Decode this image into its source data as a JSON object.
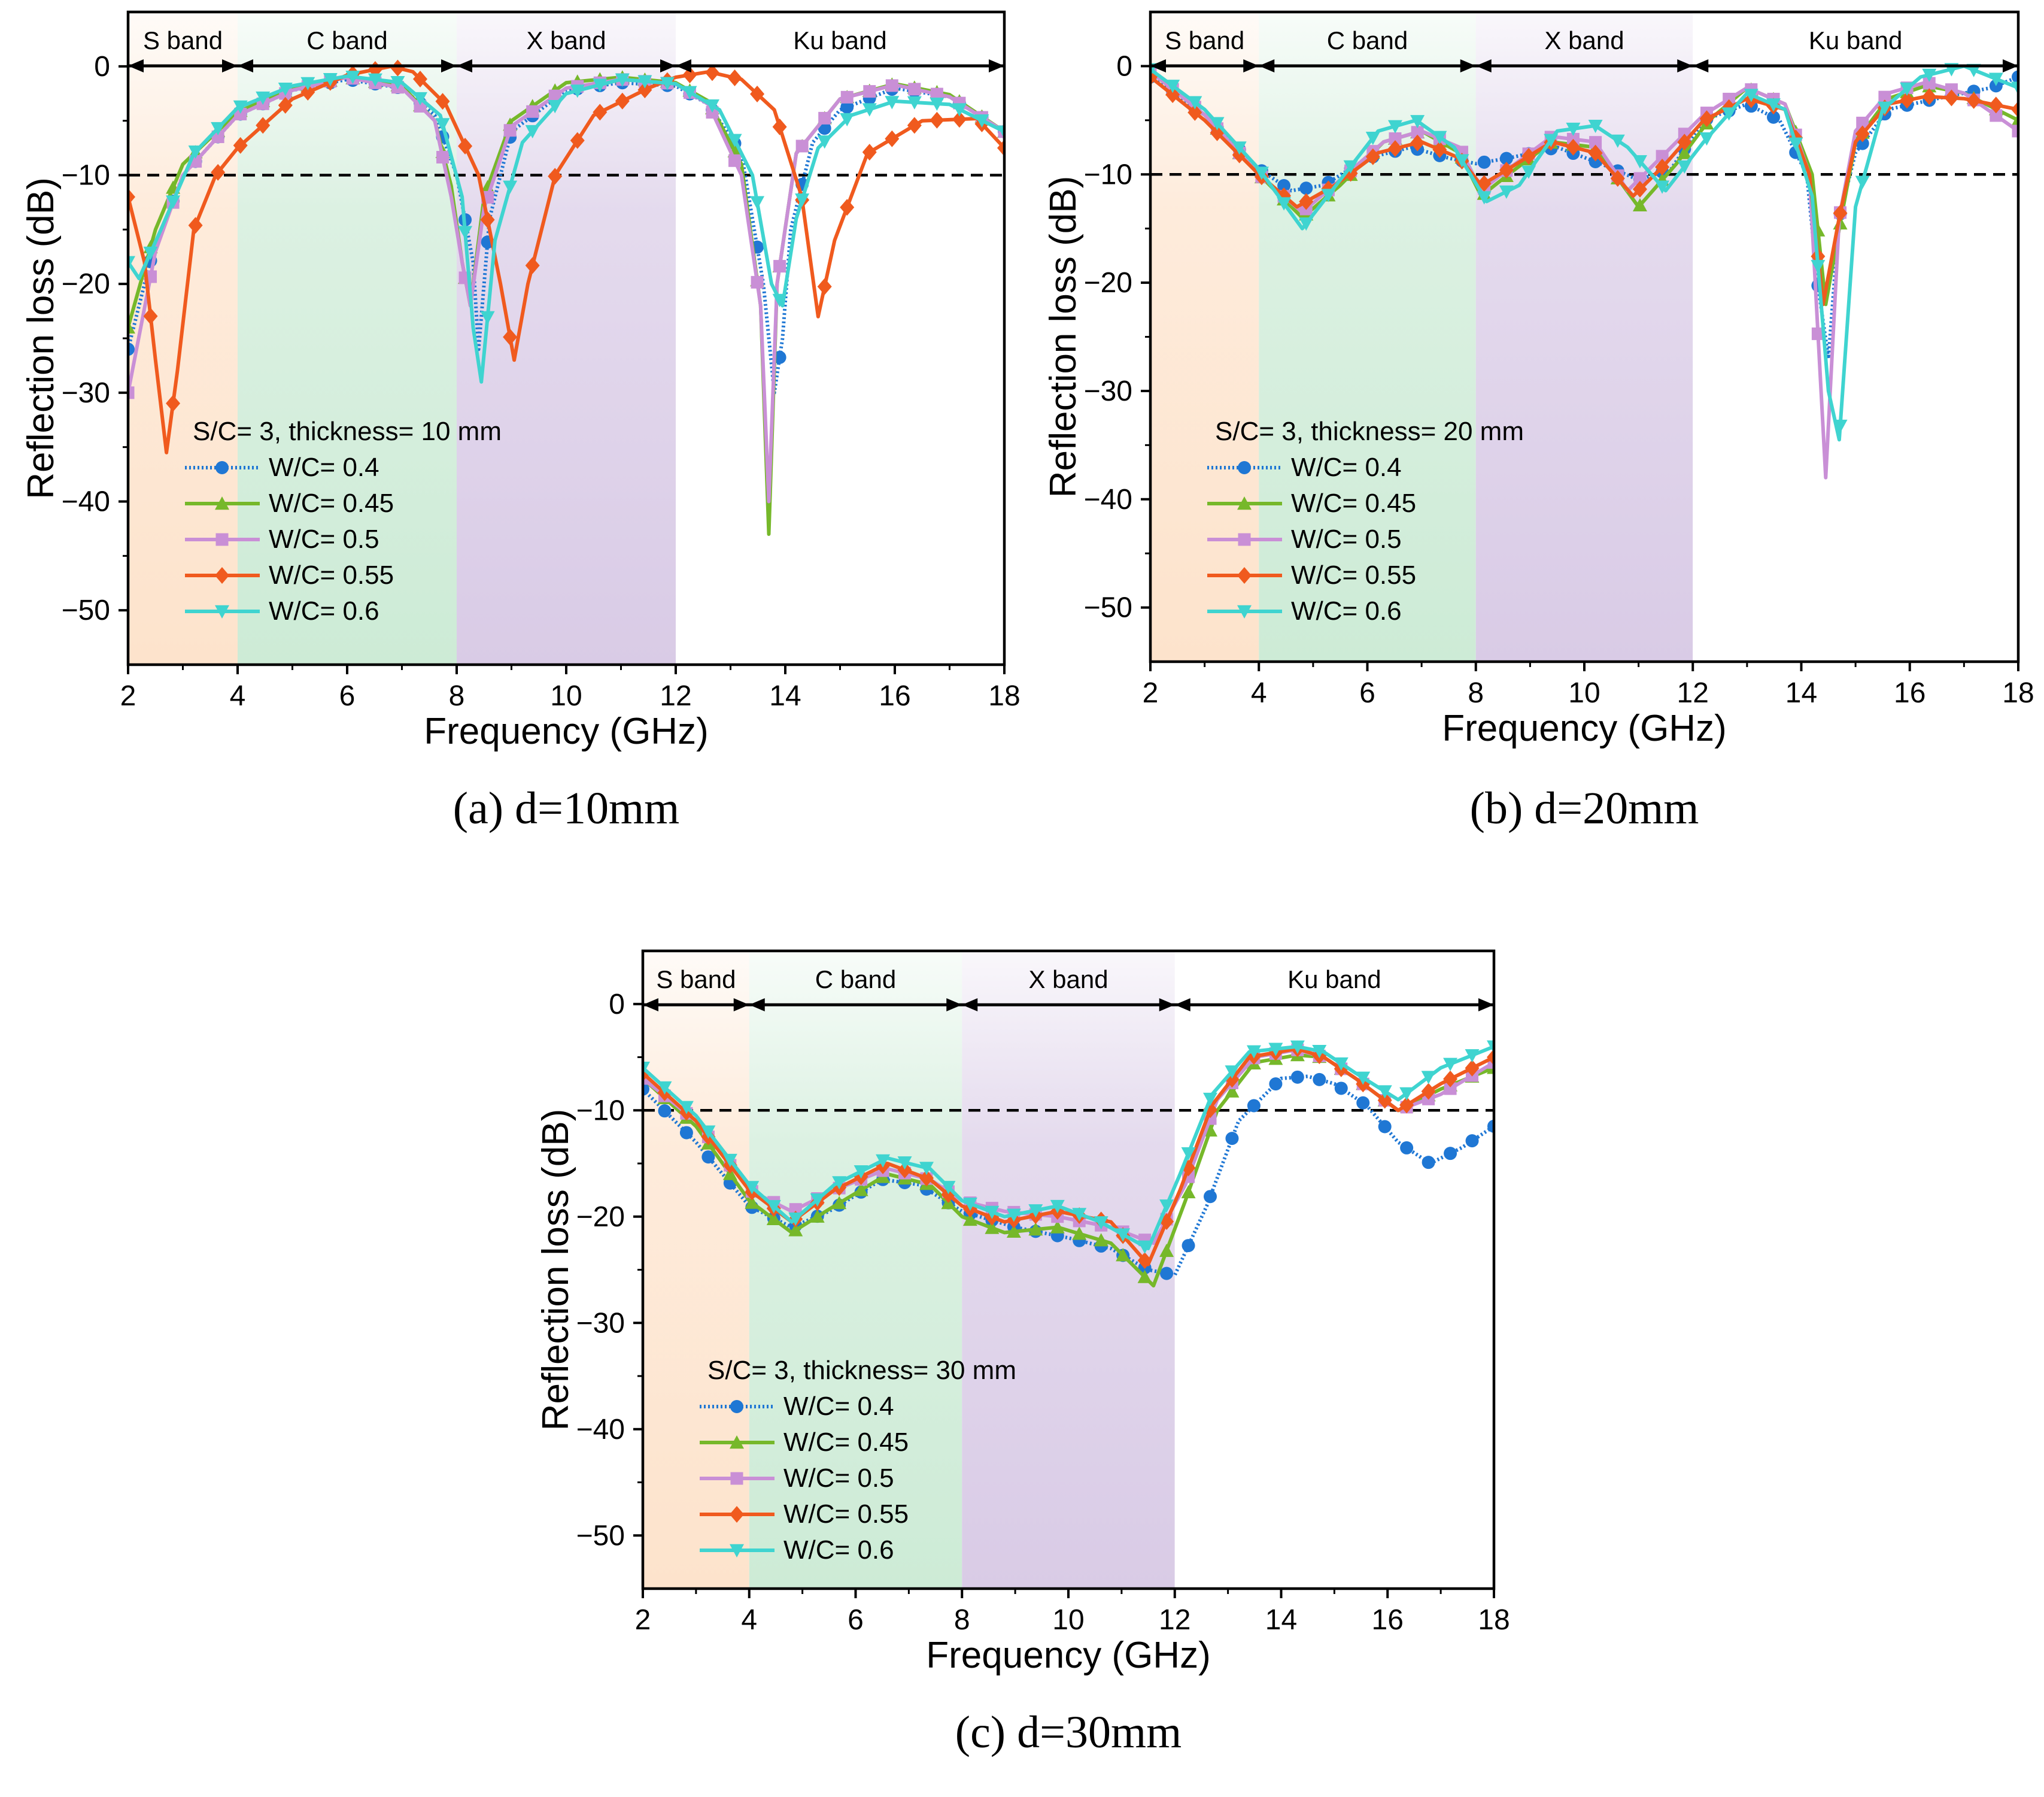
{
  "figure": {
    "background": "#ffffff",
    "line_color": "#000000"
  },
  "band_colors": {
    "S": "#fde3cc",
    "C": "#cdebd6",
    "X": "#d9cbe6",
    "Ku": "#ffffff"
  },
  "series_styles": [
    {
      "name": "W/C= 0.4",
      "color": "#1f77d4",
      "marker": "circle",
      "dotted": true
    },
    {
      "name": "W/C= 0.45",
      "color": "#76b82a",
      "marker": "triangle-up",
      "dotted": false
    },
    {
      "name": "W/C= 0.5",
      "color": "#c98fd6",
      "marker": "square",
      "dotted": false
    },
    {
      "name": "W/C= 0.55",
      "color": "#f05a1e",
      "marker": "diamond",
      "dotted": false
    },
    {
      "name": "W/C= 0.6",
      "color": "#3fd4d0",
      "marker": "triangle-down",
      "dotted": false
    }
  ],
  "chart_data": [
    {
      "id": "a",
      "type": "line",
      "caption": "(a) d=10mm",
      "xlabel": "Frequency (GHz)",
      "ylabel": "Reflection loss (dB)",
      "xlim": [
        2,
        18
      ],
      "ylim": [
        -55,
        5
      ],
      "xticks": [
        2,
        4,
        6,
        8,
        10,
        12,
        14,
        16,
        18
      ],
      "yticks": [
        0,
        -10,
        -20,
        -30,
        -40,
        -50
      ],
      "threshold": -10,
      "bands": [
        {
          "label": "S band",
          "from": 2,
          "to": 4
        },
        {
          "label": "C band",
          "from": 4,
          "to": 8
        },
        {
          "label": "X band",
          "from": 8,
          "to": 12
        },
        {
          "label": "Ku band",
          "from": 12,
          "to": 18
        }
      ],
      "legend_title": "S/C= 3, thickness= 10 mm",
      "series": [
        {
          "name": "W/C= 0.4",
          "x": [
            2,
            2.4,
            3,
            4,
            5,
            6,
            7,
            7.6,
            8,
            8.3,
            8.4,
            8.6,
            9,
            10,
            11,
            12,
            12.6,
            13.2,
            13.6,
            13.8,
            13.95,
            14.1,
            14.5,
            15,
            16,
            17,
            18
          ],
          "y": [
            -26,
            -18,
            -10,
            -4.5,
            -2.2,
            -1.2,
            -2,
            -4.5,
            -10,
            -18,
            -26,
            -14,
            -6,
            -2.2,
            -1.5,
            -1.8,
            -3.5,
            -8,
            -20,
            -30,
            -25,
            -15,
            -7,
            -4,
            -2,
            -2.8,
            -6
          ]
        },
        {
          "name": "W/C= 0.45",
          "x": [
            2,
            2.5,
            3,
            4,
            5,
            6,
            7,
            7.6,
            7.9,
            8.1,
            8.25,
            8.5,
            9,
            10,
            11,
            12,
            12.6,
            13.2,
            13.55,
            13.7,
            13.85,
            14.2,
            15,
            16,
            17,
            18
          ],
          "y": [
            -24,
            -15,
            -9,
            -4.2,
            -2,
            -1,
            -1.8,
            -5,
            -11,
            -18,
            -22,
            -12,
            -5,
            -1.5,
            -1,
            -1.5,
            -3.2,
            -9,
            -22,
            -43,
            -20,
            -8,
            -3,
            -1.6,
            -2.6,
            -6
          ]
        },
        {
          "name": "W/C= 0.5",
          "x": [
            2,
            2.5,
            3,
            4,
            5,
            6,
            7,
            7.6,
            7.9,
            8.1,
            8.25,
            8.5,
            9,
            10,
            11,
            12,
            12.6,
            13.2,
            13.55,
            13.7,
            13.85,
            14.2,
            15,
            16,
            17,
            18
          ],
          "y": [
            -30,
            -17,
            -10,
            -4.5,
            -2.2,
            -1,
            -2,
            -5,
            -12,
            -18,
            -22,
            -13,
            -5.5,
            -2,
            -1.2,
            -1.6,
            -3.5,
            -10,
            -22,
            -40,
            -20,
            -8,
            -3,
            -1.7,
            -2.8,
            -6
          ]
        },
        {
          "name": "W/C= 0.55",
          "x": [
            2,
            2.3,
            2.5,
            2.7,
            2.9,
            3.2,
            3.6,
            4,
            5,
            6,
            6.5,
            6.8,
            7.2,
            7.8,
            8.4,
            8.8,
            9.05,
            9.3,
            9.8,
            10.5,
            11.5,
            12,
            12.6,
            13.2,
            13.8,
            14.3,
            14.6,
            14.9,
            15.5,
            16.5,
            17.5,
            18
          ],
          "y": [
            -12,
            -18,
            -27,
            -35.5,
            -28,
            -15,
            -10,
            -7.5,
            -3,
            -0.8,
            -0.3,
            0,
            -0.5,
            -3.5,
            -10,
            -20,
            -27,
            -20,
            -10,
            -4.5,
            -2,
            -1,
            -0.5,
            -1.2,
            -4,
            -12,
            -23,
            -16,
            -8,
            -5,
            -4.8,
            -7.5
          ]
        },
        {
          "name": "W/C= 0.6",
          "x": [
            2,
            2.2,
            2.6,
            3.2,
            4,
            5,
            6,
            7,
            7.7,
            8.1,
            8.3,
            8.45,
            8.7,
            9.2,
            10,
            11,
            12,
            12.8,
            13.4,
            13.75,
            13.95,
            14.2,
            14.6,
            15.2,
            16,
            17,
            18
          ],
          "y": [
            -18,
            -19.5,
            -15,
            -8,
            -3.8,
            -1.8,
            -0.9,
            -1.5,
            -4.5,
            -12,
            -24,
            -29,
            -16,
            -7,
            -2.5,
            -1.2,
            -1.6,
            -4,
            -10,
            -20,
            -22,
            -14,
            -7.5,
            -4.5,
            -3.2,
            -3.5,
            -6
          ]
        }
      ]
    },
    {
      "id": "b",
      "type": "line",
      "caption": "(b) d=20mm",
      "xlabel": "Frequency (GHz)",
      "ylabel": "Reflection loss (dB)",
      "xlim": [
        2,
        18
      ],
      "ylim": [
        -55,
        5
      ],
      "xticks": [
        2,
        4,
        6,
        8,
        10,
        12,
        14,
        16,
        18
      ],
      "yticks": [
        0,
        -10,
        -20,
        -30,
        -40,
        -50
      ],
      "threshold": -10,
      "bands": [
        {
          "label": "S band",
          "from": 2,
          "to": 4
        },
        {
          "label": "C band",
          "from": 4,
          "to": 8
        },
        {
          "label": "X band",
          "from": 8,
          "to": 12
        },
        {
          "label": "Ku band",
          "from": 12,
          "to": 18
        }
      ],
      "legend_title": "S/C= 3, thickness= 20 mm",
      "series": [
        {
          "name": "W/C= 0.4",
          "x": [
            2,
            3,
            4,
            4.6,
            5.2,
            6,
            6.8,
            7.5,
            8,
            8.6,
            9.5,
            10.3,
            11,
            11.6,
            12.2,
            13,
            13.6,
            14.1,
            14.3,
            14.5,
            14.7,
            15,
            15.6,
            16.5,
            17.5,
            18
          ],
          "y": [
            -1,
            -4.5,
            -9.5,
            -11.5,
            -11,
            -8.5,
            -7.5,
            -8.5,
            -9,
            -8.5,
            -7.5,
            -9,
            -10.5,
            -9.5,
            -5,
            -3.5,
            -5,
            -10,
            -20,
            -27,
            -14,
            -8,
            -4,
            -3,
            -2,
            -1
          ]
        },
        {
          "name": "W/C= 0.45",
          "x": [
            2,
            3,
            4,
            4.8,
            5.5,
            6.3,
            7,
            7.7,
            8.1,
            8.6,
            9.4,
            10.2,
            11,
            11.7,
            12.3,
            13,
            13.7,
            14.2,
            14.45,
            14.7,
            15,
            15.6,
            16.3,
            17,
            18
          ],
          "y": [
            -0.5,
            -4.5,
            -10,
            -14,
            -11,
            -7,
            -6,
            -8,
            -12,
            -10,
            -7,
            -7.5,
            -13,
            -9,
            -5,
            -2,
            -3.5,
            -10,
            -22,
            -15,
            -7,
            -3,
            -1.8,
            -2.5,
            -5
          ]
        },
        {
          "name": "W/C= 0.5",
          "x": [
            2,
            3,
            4,
            4.8,
            5.5,
            6.3,
            7,
            7.7,
            8.1,
            8.6,
            9.4,
            10.2,
            10.8,
            11.5,
            12.2,
            13,
            13.7,
            14.15,
            14.45,
            14.7,
            15,
            15.6,
            16.3,
            17,
            18
          ],
          "y": [
            -0.5,
            -4.5,
            -10,
            -13.5,
            -10.5,
            -7,
            -6,
            -7.5,
            -11.5,
            -9.5,
            -6.5,
            -7,
            -11.5,
            -8,
            -4.5,
            -2,
            -3.5,
            -10,
            -38,
            -14,
            -6,
            -2.5,
            -1.5,
            -2.5,
            -6
          ]
        },
        {
          "name": "W/C= 0.55",
          "x": [
            2,
            3,
            4,
            4.7,
            5.4,
            6.2,
            7,
            7.7,
            8.1,
            8.6,
            9.4,
            10.2,
            10.9,
            11.5,
            12.2,
            13,
            13.7,
            14.15,
            14.4,
            14.7,
            15,
            15.6,
            16.3,
            17,
            18
          ],
          "y": [
            -1,
            -5,
            -10,
            -13,
            -11,
            -8,
            -7,
            -8.5,
            -11,
            -9.5,
            -7,
            -8,
            -12,
            -9,
            -5,
            -3,
            -4,
            -10,
            -22,
            -14,
            -7,
            -3.5,
            -2.8,
            -3,
            -4
          ]
        },
        {
          "name": "W/C= 0.6",
          "x": [
            2,
            3,
            4,
            4.8,
            5.5,
            6.2,
            6.9,
            7.6,
            8.2,
            8.8,
            9.5,
            10.2,
            10.8,
            11.5,
            12.2,
            13,
            13.7,
            14.2,
            14.5,
            14.7,
            15,
            15.5,
            16.2,
            17,
            18
          ],
          "y": [
            -0.3,
            -4,
            -9.5,
            -15,
            -10.5,
            -6,
            -5,
            -7.5,
            -12.5,
            -11,
            -6,
            -5.5,
            -7.5,
            -11.5,
            -7,
            -2.5,
            -4,
            -12,
            -30,
            -34.5,
            -13,
            -4,
            -1,
            0,
            -2
          ]
        }
      ]
    },
    {
      "id": "c",
      "type": "line",
      "caption": "(c) d=30mm",
      "xlabel": "Frequency (GHz)",
      "ylabel": "Reflection loss (dB)",
      "xlim": [
        2,
        18
      ],
      "ylim": [
        -55,
        5
      ],
      "xticks": [
        2,
        4,
        6,
        8,
        10,
        12,
        14,
        16,
        18
      ],
      "yticks": [
        0,
        -10,
        -20,
        -30,
        -40,
        -50
      ],
      "threshold": -10,
      "bands": [
        {
          "label": "S band",
          "from": 2,
          "to": 4
        },
        {
          "label": "C band",
          "from": 4,
          "to": 8
        },
        {
          "label": "X band",
          "from": 8,
          "to": 12
        },
        {
          "label": "Ku band",
          "from": 12,
          "to": 18
        }
      ],
      "legend_title": "S/C= 3, thickness= 30 mm",
      "series": [
        {
          "name": "W/C= 0.4",
          "x": [
            2,
            3,
            4,
            4.8,
            5.5,
            6.5,
            7.2,
            8,
            9,
            10,
            10.8,
            11.5,
            12,
            12.6,
            13.2,
            14,
            14.5,
            15,
            15.6,
            16.2,
            16.8,
            17.4,
            18
          ],
          "y": [
            -8,
            -13,
            -19,
            -21,
            -19.5,
            -16.5,
            -17,
            -19.5,
            -21,
            -22,
            -23,
            -25,
            -25.5,
            -19,
            -11,
            -7,
            -6.8,
            -7.5,
            -9.5,
            -13,
            -15,
            -13.5,
            -11.5
          ]
        },
        {
          "name": "W/C= 0.45",
          "x": [
            2,
            3,
            4,
            4.8,
            5.6,
            6.6,
            7.4,
            8,
            8.8,
            9.8,
            10.8,
            11.6,
            12.2,
            12.8,
            13.5,
            14.3,
            14.8,
            15.4,
            16.2,
            17,
            18
          ],
          "y": [
            -7,
            -11.5,
            -18.5,
            -21.5,
            -19,
            -16,
            -17,
            -20,
            -21.5,
            -21,
            -22.5,
            -26.5,
            -18.5,
            -10,
            -5.5,
            -4.8,
            -5,
            -7,
            -10,
            -8,
            -6
          ]
        },
        {
          "name": "W/C= 0.5",
          "x": [
            2,
            3,
            4,
            4.8,
            5.6,
            6.6,
            7.4,
            8,
            8.8,
            9.8,
            10.8,
            11.6,
            12.2,
            12.8,
            13.5,
            14.3,
            14.8,
            15.4,
            16.2,
            17,
            18
          ],
          "y": [
            -7,
            -11,
            -17.5,
            -19.5,
            -17.5,
            -15.5,
            -16.5,
            -18.5,
            -19.5,
            -20,
            -21,
            -22.5,
            -17,
            -9,
            -5,
            -4.3,
            -5,
            -7,
            -10,
            -8.5,
            -5.5
          ]
        },
        {
          "name": "W/C= 0.55",
          "x": [
            2,
            3,
            4,
            4.8,
            5.6,
            6.6,
            7.4,
            8,
            8.8,
            9.8,
            10.8,
            11.5,
            12.1,
            12.7,
            13.4,
            14.3,
            14.8,
            15.4,
            16.2,
            17,
            18
          ],
          "y": [
            -6.5,
            -11,
            -17.5,
            -20.5,
            -17.5,
            -15,
            -16.5,
            -19,
            -20.5,
            -19.5,
            -20.5,
            -24.5,
            -17.5,
            -9.5,
            -5,
            -4.2,
            -5,
            -7,
            -10,
            -7.5,
            -5
          ]
        },
        {
          "name": "W/C= 0.6",
          "x": [
            2,
            3,
            4,
            4.8,
            5.6,
            6.6,
            7.4,
            8,
            8.8,
            9.8,
            10.6,
            11.5,
            12.1,
            12.7,
            13.4,
            14.3,
            14.8,
            15.4,
            16.2,
            17,
            18
          ],
          "y": [
            -6,
            -10.5,
            -17,
            -20.5,
            -17,
            -14.5,
            -15.5,
            -18.5,
            -20,
            -19,
            -20.5,
            -23,
            -16,
            -8.5,
            -4.5,
            -4,
            -4.5,
            -6.5,
            -9,
            -6,
            -4
          ]
        }
      ]
    }
  ]
}
